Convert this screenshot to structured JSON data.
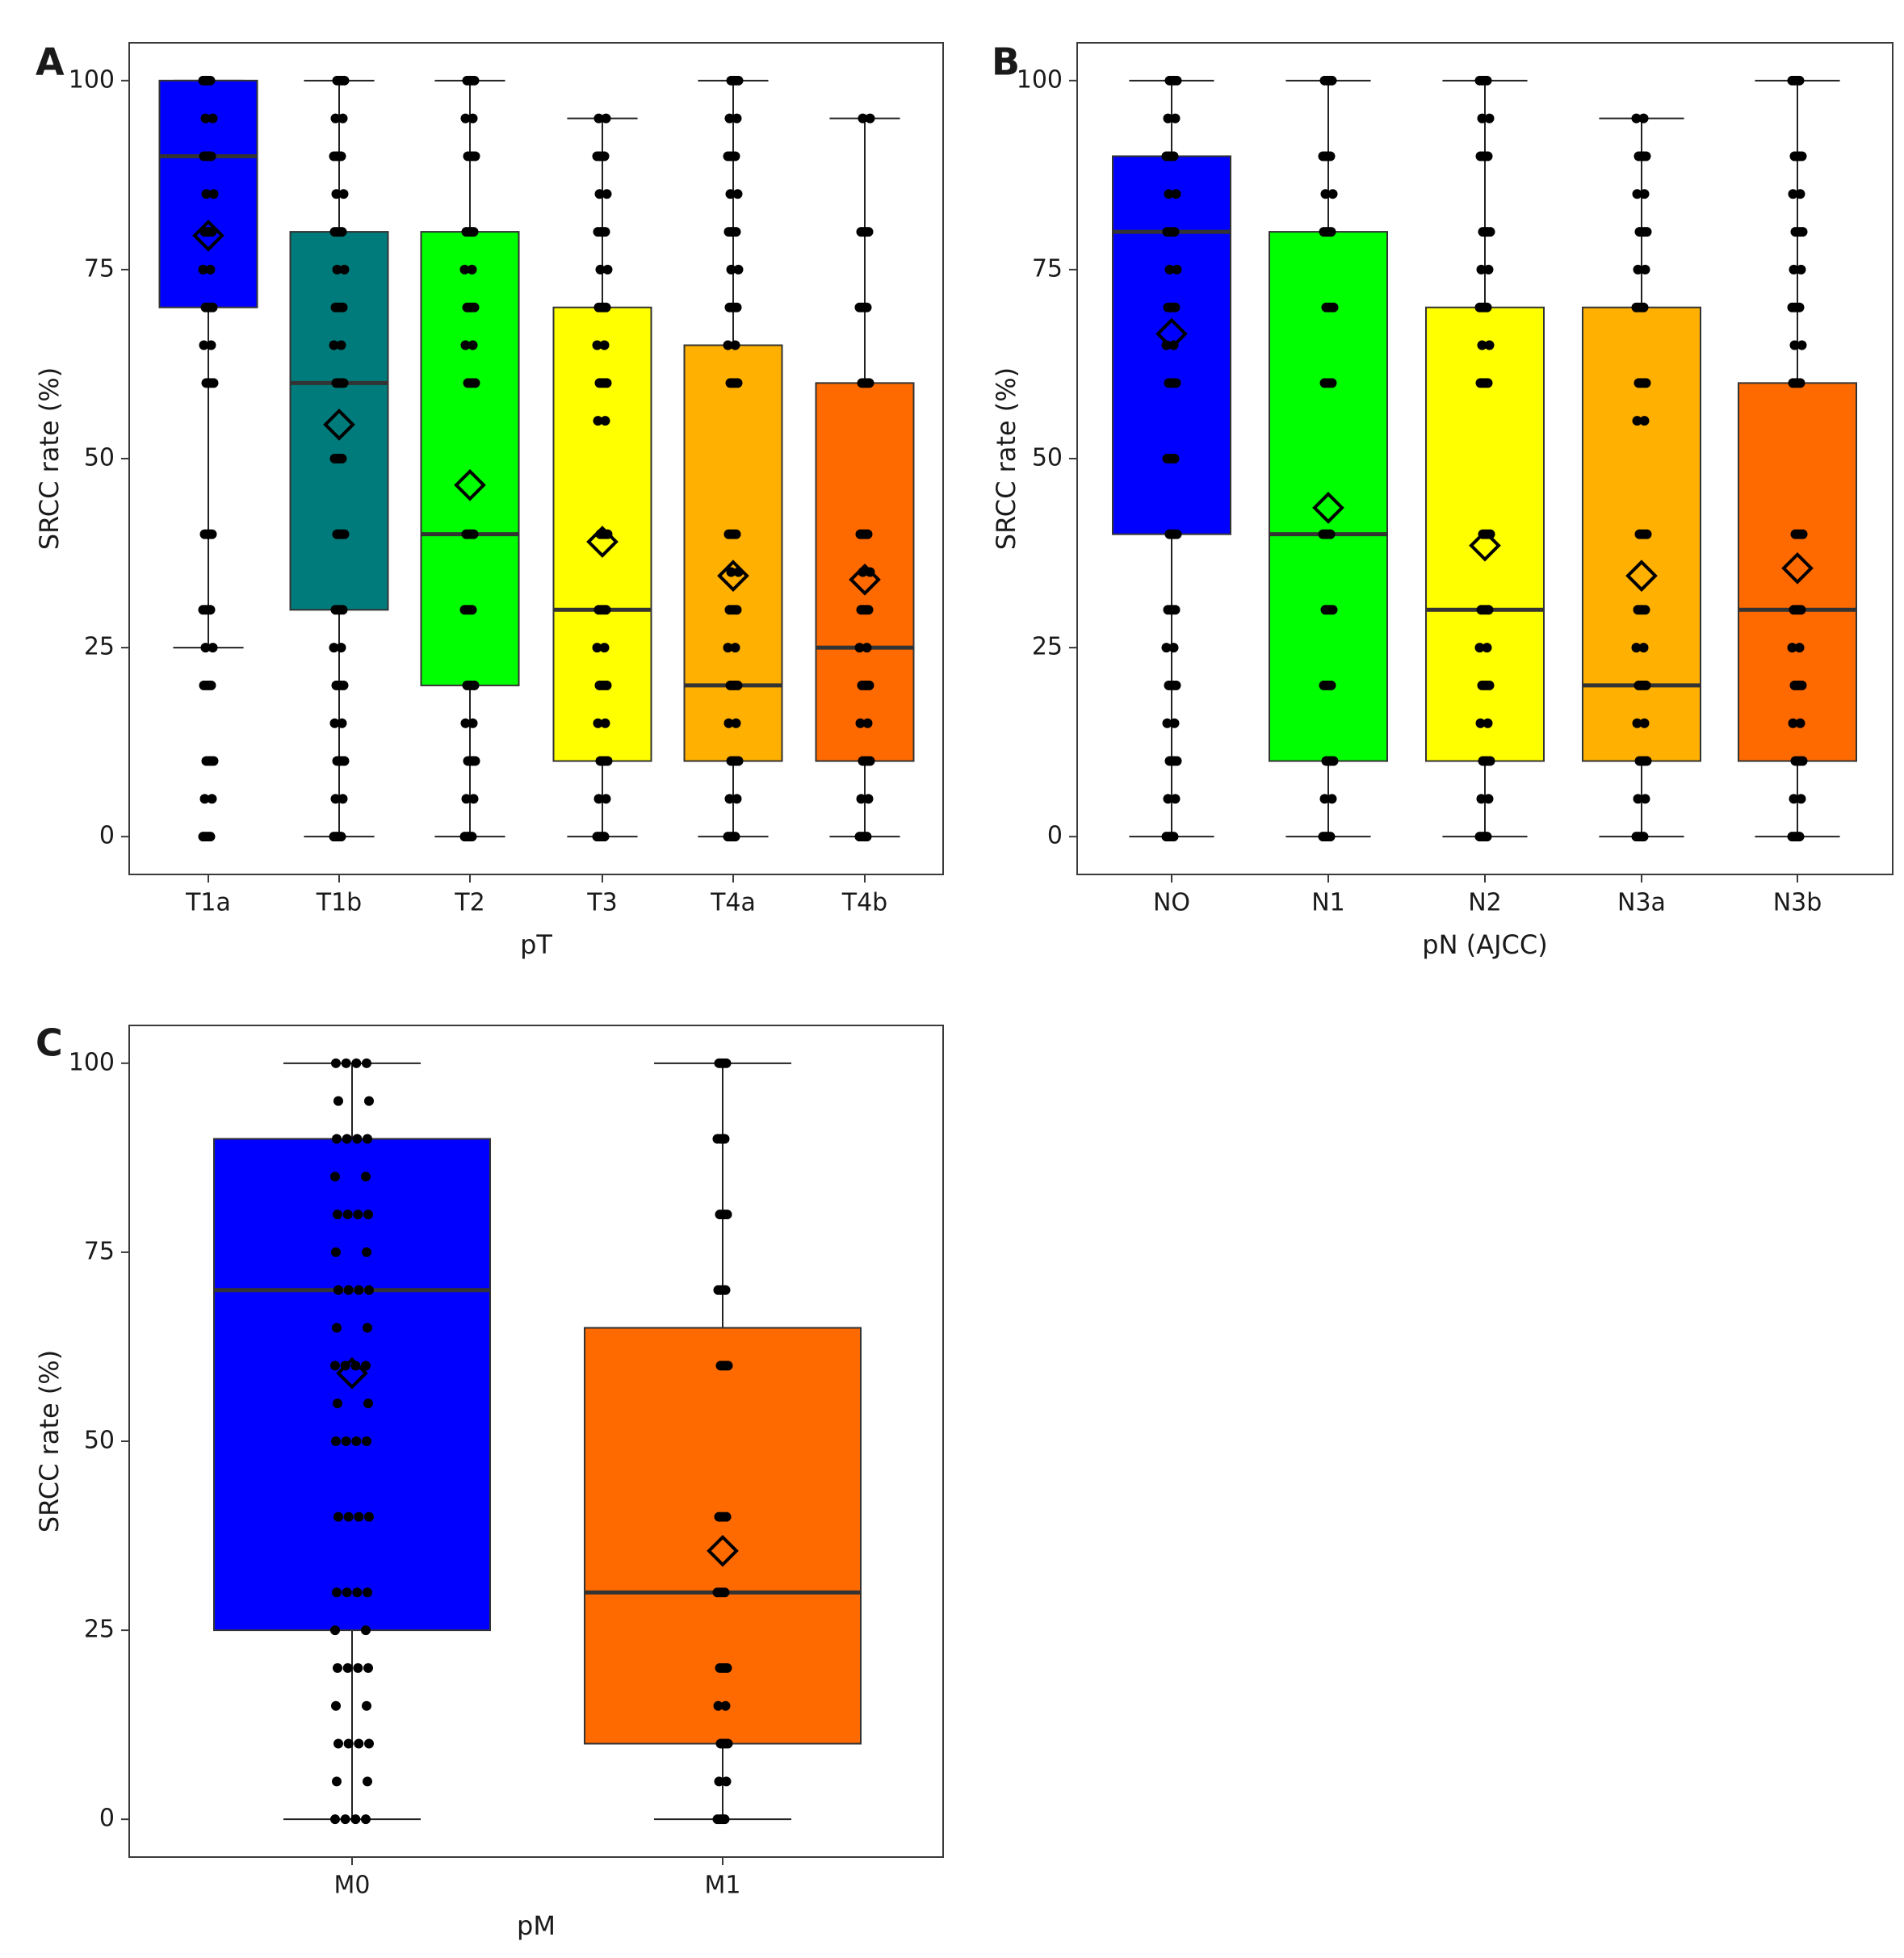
{
  "figure": {
    "letters": [
      "A",
      "B",
      "C"
    ]
  },
  "chart_data": [
    {
      "panel": "A",
      "type": "box",
      "xlabel": "pT",
      "ylabel": "SRCC rate (%)",
      "ylim": [
        -5,
        105
      ],
      "yticks": [
        0,
        25,
        50,
        75,
        100
      ],
      "grid": false,
      "categories": [
        "T1a",
        "T1b",
        "T2",
        "T3",
        "T4a",
        "T4b"
      ],
      "colors": [
        "#0000ff",
        "#007b7b",
        "#00ff00",
        "#ffff00",
        "#ffb000",
        "#ff6a00"
      ],
      "boxes": [
        {
          "q1": 70,
          "median": 90,
          "q3": 100,
          "whisker_low": 25,
          "whisker_high": 100,
          "mean": 79.5,
          "extra_low_points": [
            0,
            5,
            10,
            20
          ]
        },
        {
          "q1": 30,
          "median": 60,
          "q3": 80,
          "whisker_low": 0,
          "whisker_high": 100,
          "mean": 54.5
        },
        {
          "q1": 20,
          "median": 40,
          "q3": 80,
          "whisker_low": 0,
          "whisker_high": 100,
          "mean": 46.5
        },
        {
          "q1": 10,
          "median": 30,
          "q3": 70,
          "whisker_low": 0,
          "whisker_high": 95,
          "mean": 39
        },
        {
          "q1": 10,
          "median": 20,
          "q3": 65,
          "whisker_low": 0,
          "whisker_high": 100,
          "mean": 34.5
        },
        {
          "q1": 10,
          "median": 25,
          "q3": 60,
          "whisker_low": 0,
          "whisker_high": 95,
          "mean": 34
        }
      ],
      "points": [
        [
          0,
          5,
          10,
          20,
          25,
          30,
          40,
          60,
          65,
          70,
          75,
          80,
          85,
          90,
          95,
          100
        ],
        [
          0,
          5,
          10,
          15,
          20,
          25,
          30,
          40,
          50,
          60,
          65,
          70,
          75,
          80,
          85,
          90,
          95,
          100
        ],
        [
          0,
          5,
          10,
          15,
          20,
          30,
          40,
          60,
          65,
          70,
          75,
          80,
          90,
          95,
          100
        ],
        [
          0,
          5,
          10,
          15,
          20,
          25,
          30,
          40,
          55,
          60,
          65,
          70,
          75,
          80,
          85,
          90,
          95
        ],
        [
          0,
          5,
          10,
          15,
          20,
          25,
          30,
          35,
          40,
          60,
          65,
          70,
          75,
          80,
          85,
          90,
          95,
          100
        ],
        [
          0,
          5,
          10,
          15,
          20,
          25,
          30,
          35,
          40,
          60,
          70,
          80,
          95
        ]
      ]
    },
    {
      "panel": "B",
      "type": "box",
      "xlabel": "pN (AJCC)",
      "ylabel": "SRCC rate (%)",
      "ylim": [
        -5,
        105
      ],
      "yticks": [
        0,
        25,
        50,
        75,
        100
      ],
      "grid": false,
      "categories": [
        "NO",
        "N1",
        "N2",
        "N3a",
        "N3b"
      ],
      "colors": [
        "#0000ff",
        "#00ff00",
        "#ffff00",
        "#ffb000",
        "#ff6a00"
      ],
      "boxes": [
        {
          "q1": 40,
          "median": 80,
          "q3": 90,
          "whisker_low": 0,
          "whisker_high": 100,
          "mean": 66.5
        },
        {
          "q1": 10,
          "median": 40,
          "q3": 80,
          "whisker_low": 0,
          "whisker_high": 100,
          "mean": 43.5
        },
        {
          "q1": 10,
          "median": 30,
          "q3": 70,
          "whisker_low": 0,
          "whisker_high": 100,
          "mean": 38.5
        },
        {
          "q1": 10,
          "median": 20,
          "q3": 70,
          "whisker_low": 0,
          "whisker_high": 95,
          "mean": 34.5
        },
        {
          "q1": 10,
          "median": 30,
          "q3": 60,
          "whisker_low": 0,
          "whisker_high": 100,
          "mean": 35.5
        }
      ],
      "points": [
        [
          0,
          5,
          10,
          15,
          20,
          25,
          30,
          40,
          50,
          60,
          65,
          70,
          75,
          80,
          85,
          90,
          95,
          100
        ],
        [
          0,
          5,
          10,
          20,
          30,
          40,
          60,
          70,
          80,
          85,
          90,
          100
        ],
        [
          0,
          5,
          10,
          15,
          20,
          25,
          30,
          40,
          60,
          65,
          70,
          75,
          80,
          90,
          95,
          100
        ],
        [
          0,
          5,
          10,
          15,
          20,
          25,
          30,
          40,
          55,
          60,
          70,
          75,
          80,
          85,
          90,
          95
        ],
        [
          0,
          5,
          10,
          15,
          20,
          25,
          30,
          40,
          60,
          65,
          70,
          75,
          80,
          85,
          90,
          100
        ]
      ]
    },
    {
      "panel": "C",
      "type": "box",
      "xlabel": "pM",
      "ylabel": "SRCC rate (%)",
      "ylim": [
        -5,
        105
      ],
      "yticks": [
        0,
        25,
        50,
        75,
        100
      ],
      "grid": false,
      "categories": [
        "M0",
        "M1"
      ],
      "colors": [
        "#0000ff",
        "#ff6a00"
      ],
      "boxes": [
        {
          "q1": 25,
          "median": 70,
          "q3": 90,
          "whisker_low": 0,
          "whisker_high": 100,
          "mean": 59
        },
        {
          "q1": 10,
          "median": 30,
          "q3": 65,
          "whisker_low": 0,
          "whisker_high": 100,
          "mean": 35.5
        }
      ],
      "points": [
        [
          0,
          5,
          10,
          15,
          20,
          25,
          30,
          40,
          50,
          55,
          60,
          65,
          70,
          75,
          80,
          85,
          90,
          95,
          100
        ],
        [
          0,
          5,
          10,
          15,
          20,
          30,
          40,
          60,
          70,
          80,
          90,
          100
        ]
      ]
    }
  ]
}
